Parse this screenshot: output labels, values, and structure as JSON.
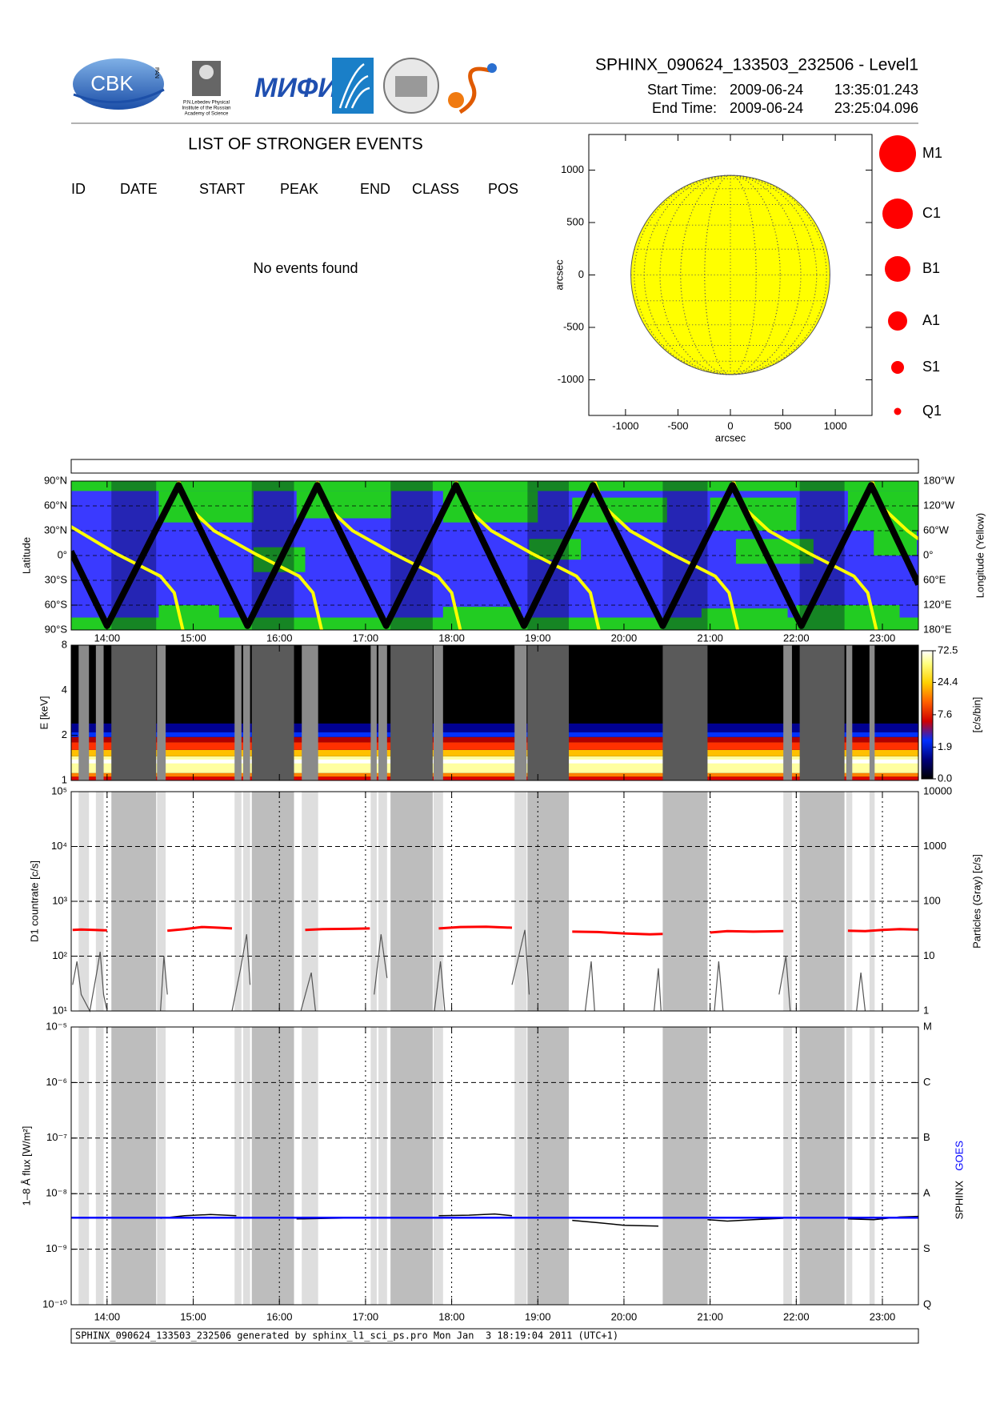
{
  "header": {
    "title": "SPHINX_090624_133503_232506 - Level1",
    "start_label": "Start Time:",
    "start_date": "2009-06-24",
    "start_time": "13:35:01.243",
    "end_label": "End Time:",
    "end_date": "2009-06-24",
    "end_time": "23:25:04.096"
  },
  "logos": {
    "cbk": "CBK",
    "pan": "PAN",
    "lebedev": [
      "P.N.Lebedev Physical",
      "Institute of the Russian",
      "Academy of Science"
    ],
    "mifi": "МИФИ"
  },
  "events": {
    "title": "LIST OF STRONGER EVENTS",
    "columns": [
      "ID",
      "DATE",
      "START",
      "PEAK",
      "END",
      "CLASS",
      "POS"
    ],
    "message": "No events found"
  },
  "disk": {
    "type": "scatter",
    "xlim": [
      -1350,
      1350
    ],
    "ylim": [
      -1340,
      1340
    ],
    "xticks": [
      -1000,
      -500,
      0,
      500,
      1000
    ],
    "yticks": [
      -1000,
      -500,
      0,
      500,
      1000
    ],
    "xlabel": "arcsec",
    "ylabel": "arcsec",
    "radius": 949,
    "color": "#ffff00"
  },
  "classes": {
    "labels": [
      "M1",
      "C1",
      "B1",
      "A1",
      "S1",
      "Q1"
    ],
    "color": "#ff0000"
  },
  "time_axis": {
    "xlim": [
      13.5836,
      23.4178
    ],
    "xticks": [
      {
        "value": 14,
        "label": "14:00"
      },
      {
        "value": 15,
        "label": "15:00"
      },
      {
        "value": 16,
        "label": "16:00"
      },
      {
        "value": 17,
        "label": "17:00"
      },
      {
        "value": 18,
        "label": "18:00"
      },
      {
        "value": 19,
        "label": "19:00"
      },
      {
        "value": 20,
        "label": "20:00"
      },
      {
        "value": 21,
        "label": "21:00"
      },
      {
        "value": 22,
        "label": "22:00"
      },
      {
        "value": 23,
        "label": "23:00"
      }
    ]
  },
  "shading": {
    "dark": [
      [
        14.05,
        14.57
      ],
      [
        15.68,
        16.17
      ],
      [
        17.29,
        17.78
      ],
      [
        18.88,
        19.36
      ],
      [
        20.45,
        20.97
      ],
      [
        22.04,
        22.56
      ]
    ],
    "light": [
      [
        13.67,
        13.79
      ],
      [
        13.87,
        13.96
      ],
      [
        14.58,
        14.68
      ],
      [
        15.48,
        15.56
      ],
      [
        15.58,
        15.66
      ],
      [
        16.26,
        16.45
      ],
      [
        17.06,
        17.13
      ],
      [
        17.15,
        17.25
      ],
      [
        17.79,
        17.9
      ],
      [
        18.73,
        18.87
      ],
      [
        21.85,
        21.95
      ],
      [
        22.58,
        22.65
      ],
      [
        22.85,
        22.91
      ]
    ]
  },
  "latitude": {
    "type": "line",
    "ylabel": "Latitude",
    "y2label": "Longitude (Yellow)",
    "ylim": [
      -90,
      90
    ],
    "yticks": [
      {
        "value": -90,
        "label": "90°S"
      },
      {
        "value": -60,
        "label": "60°S"
      },
      {
        "value": -30,
        "label": "30°S"
      },
      {
        "value": 0,
        "label": "0°"
      },
      {
        "value": 30,
        "label": "30°N"
      },
      {
        "value": 60,
        "label": "60°N"
      },
      {
        "value": 90,
        "label": "90°N"
      }
    ],
    "y2lim": [
      -180,
      180
    ],
    "y2ticks": [
      {
        "value": -180,
        "label": "180°E"
      },
      {
        "value": -120,
        "label": "120°E"
      },
      {
        "value": -60,
        "label": "60°E"
      },
      {
        "value": 0,
        "label": "0°"
      },
      {
        "value": 60,
        "label": "60°W"
      },
      {
        "value": 120,
        "label": "120°W"
      },
      {
        "value": 180,
        "label": "180°W"
      }
    ],
    "position": {
      "color": "#000000",
      "x": [
        13.58,
        14.0,
        14.83,
        15.63,
        16.44,
        17.24,
        18.05,
        18.84,
        19.64,
        20.45,
        21.26,
        22.06,
        22.87,
        23.42
      ],
      "values": [
        5,
        -85,
        85,
        -85,
        85,
        -85,
        85,
        -85,
        85,
        -85,
        85,
        -85,
        85,
        -35
      ]
    },
    "longitude": {
      "color": "#ffff00",
      "axis": "y2",
      "x": [
        13.58,
        14.1,
        14.62,
        14.78,
        14.88,
        null,
        14.83,
        14.93,
        15.24,
        15.71,
        16.23,
        16.39,
        16.49,
        null,
        16.44,
        16.54,
        16.85,
        17.32,
        17.84,
        18.0,
        18.1,
        null,
        18.05,
        18.15,
        18.46,
        18.93,
        19.45,
        19.61,
        19.71,
        null,
        19.66,
        19.76,
        20.07,
        20.54,
        21.06,
        21.22,
        21.32,
        null,
        21.27,
        21.37,
        21.68,
        22.15,
        22.67,
        22.83,
        22.93,
        null,
        22.88,
        22.98,
        23.29,
        23.42
      ],
      "values": [
        70,
        5,
        -50,
        -90,
        -180,
        null,
        180,
        120,
        60,
        5,
        -50,
        -90,
        -180,
        null,
        180,
        120,
        60,
        5,
        -50,
        -90,
        -180,
        null,
        180,
        120,
        60,
        5,
        -50,
        -90,
        -180,
        null,
        180,
        120,
        60,
        5,
        -50,
        -90,
        -180,
        null,
        180,
        120,
        60,
        5,
        -50,
        -90,
        -180,
        null,
        180,
        120,
        60,
        40
      ]
    }
  },
  "spectrum": {
    "type": "heatmap",
    "ylabel": "E [keV]",
    "ylim": [
      1,
      8
    ],
    "log": true,
    "yticks": [
      1,
      2,
      4,
      8
    ],
    "colorbar": {
      "label": "[c/s/bin]",
      "lim": [
        0,
        72.5
      ],
      "scale": "log1p",
      "ticks": [
        {
          "value": 0,
          "label": "0.0"
        },
        1.9,
        7.6,
        24.4,
        72.5
      ]
    }
  },
  "countrate": {
    "type": "line",
    "ylabel": "D1 countrate [c/s]",
    "y2label": "Particles (Gray) [c/s]",
    "log": true,
    "ylim": [
      10,
      100000
    ],
    "yticks": [
      {
        "value": 10,
        "label": "10¹"
      },
      {
        "value": 100,
        "label": "10²"
      },
      {
        "value": 1000,
        "label": "10³"
      },
      {
        "value": 10000,
        "label": "10⁴"
      },
      {
        "value": 100000,
        "label": "10⁵"
      }
    ],
    "y2lim": [
      1,
      10000
    ],
    "y2ticks": [
      1,
      10,
      100,
      1000,
      10000
    ],
    "grid": true,
    "d1": {
      "color": "#ff0000",
      "x": [
        13.6,
        13.7,
        13.85,
        14.0,
        null,
        14.7,
        14.9,
        15.1,
        15.3,
        15.45,
        null,
        16.3,
        16.5,
        16.8,
        17.05,
        null,
        17.85,
        18.1,
        18.4,
        18.7,
        null,
        19.4,
        19.7,
        20.0,
        20.3,
        20.45,
        null,
        21.0,
        21.2,
        21.5,
        21.85,
        null,
        22.6,
        22.8,
        23.0,
        23.2,
        23.42
      ],
      "values": [
        300,
        305,
        300,
        295,
        null,
        290,
        310,
        340,
        330,
        320,
        null,
        300,
        310,
        315,
        320,
        null,
        320,
        340,
        345,
        330,
        null,
        280,
        275,
        260,
        250,
        255,
        null,
        270,
        285,
        280,
        285,
        null,
        290,
        285,
        300,
        310,
        305
      ]
    },
    "particles": {
      "color": "#555555",
      "axis": "y2",
      "x": [
        13.6,
        13.65,
        13.7,
        13.8,
        13.88,
        13.92,
        13.96,
        14.0,
        null,
        14.62,
        14.66,
        14.7,
        null,
        15.45,
        15.55,
        15.62,
        15.66,
        null,
        16.25,
        16.37,
        16.42,
        null,
        17.1,
        17.18,
        17.25,
        null,
        17.8,
        17.87,
        17.92,
        null,
        18.7,
        18.85,
        18.9,
        null,
        19.55,
        19.62,
        19.66,
        null,
        20.35,
        20.4,
        20.43,
        null,
        21.05,
        21.1,
        21.15,
        null,
        21.8,
        21.88,
        21.93,
        null,
        22.7,
        22.75,
        22.8
      ],
      "values": [
        3,
        8,
        2,
        1,
        5,
        12,
        2,
        1,
        null,
        1,
        10,
        2,
        null,
        1,
        6,
        25,
        3,
        null,
        1,
        5,
        1,
        null,
        2,
        25,
        4,
        null,
        1,
        8,
        1,
        null,
        3,
        30,
        2,
        null,
        1,
        8,
        1,
        null,
        1,
        6,
        1,
        null,
        1,
        8,
        1,
        null,
        2,
        10,
        1,
        null,
        1,
        5,
        1
      ]
    }
  },
  "flux": {
    "type": "line",
    "ylabel": "1–8 Å flux [W/m²]",
    "y2label": [
      "SPHINX",
      "GOES"
    ],
    "log": true,
    "ylim": [
      1e-10,
      1e-05
    ],
    "yticks": [
      {
        "value": 1e-10,
        "label": "10⁻¹⁰"
      },
      {
        "value": 1e-09,
        "label": "10⁻⁹"
      },
      {
        "value": 1e-08,
        "label": "10⁻⁸"
      },
      {
        "value": 1e-07,
        "label": "10⁻⁷"
      },
      {
        "value": 1e-06,
        "label": "10⁻⁶"
      },
      {
        "value": 1e-05,
        "label": "10⁻⁵"
      }
    ],
    "y2ticks": [
      {
        "value": 1e-10,
        "label": "Q"
      },
      {
        "value": 1e-09,
        "label": "S"
      },
      {
        "value": 1e-08,
        "label": "A"
      },
      {
        "value": 1e-07,
        "label": "B"
      },
      {
        "value": 1e-06,
        "label": "C"
      },
      {
        "value": 1e-05,
        "label": "M"
      }
    ],
    "grid": true,
    "sphinx": {
      "color": "#000000",
      "x": [
        14.62,
        14.9,
        15.2,
        15.5,
        null,
        16.2,
        16.6,
        17.05,
        null,
        17.85,
        18.2,
        18.5,
        18.7,
        null,
        19.4,
        19.7,
        20.0,
        20.4,
        null,
        20.97,
        21.2,
        21.5,
        21.85,
        null,
        22.6,
        22.9,
        23.2,
        23.42
      ],
      "values": [
        3.6e-09,
        4e-09,
        4.2e-09,
        4e-09,
        null,
        3.5e-09,
        3.6e-09,
        3.7e-09,
        null,
        4e-09,
        4.1e-09,
        4.3e-09,
        4e-09,
        null,
        3.3e-09,
        3e-09,
        2.7e-09,
        2.6e-09,
        null,
        3.4e-09,
        3.2e-09,
        3.4e-09,
        3.6e-09,
        null,
        3.5e-09,
        3.4e-09,
        3.8e-09,
        3.9e-09
      ]
    },
    "goes": {
      "color": "#0000ff",
      "x": [
        13.58,
        23.42
      ],
      "values": [
        3.7e-09,
        3.7e-09
      ]
    }
  },
  "footer": "SPHINX_090624_133503_232506 generated by sphinx_l1_sci_ps.pro Mon Jan  3 18:19:04 2011 (UTC+1)"
}
